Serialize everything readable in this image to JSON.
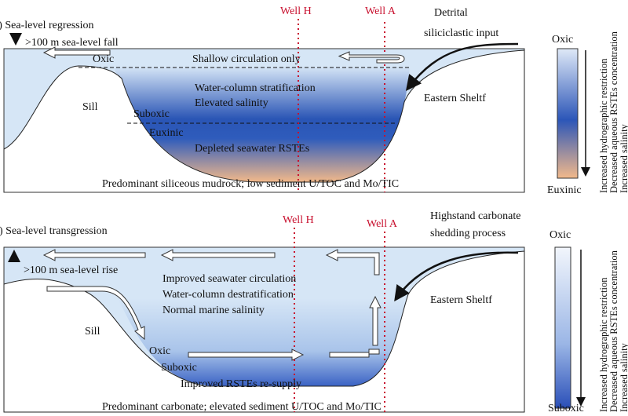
{
  "panels": [
    {
      "title": "a) Sea-level regression",
      "sea_level": ">100 m sea-level fall",
      "wells": [
        "Well H",
        "Well A"
      ],
      "input": [
        "Detrital",
        "siliciclastic input"
      ],
      "circulation": "Shallow circulation only",
      "water_column": [
        "Water-column stratification",
        "Elevated salinity"
      ],
      "redox": [
        "Oxic",
        "Suboxic",
        "Euxinic"
      ],
      "sill": "Sill",
      "shelf": "Eastern Sheltf",
      "rste": "Depleted seawater RSTEs",
      "sediment": "Predominant siliceous mudrock; low sediment U/TOC and Mo/TIC",
      "legend": {
        "top": "Oxic",
        "bottom": "Euxinic",
        "trends": [
          "Increased hydrographic restriction",
          "Decreased aqueous RSTEs concentration",
          "Increased salinity"
        ]
      }
    },
    {
      "title": "b) Sea-level transgression",
      "sea_level": ">100 m sea-level rise",
      "wells": [
        "Well H",
        "Well A"
      ],
      "input": [
        "Highstand carbonate",
        "shedding process"
      ],
      "water_column": [
        "Improved seawater circulation",
        "Water-column destratification",
        "Normal marine salinity"
      ],
      "redox": [
        "Oxic",
        "Suboxic"
      ],
      "sill": "Sill",
      "shelf": "Eastern Sheltf",
      "rste": "Improved RSTEs re-supply",
      "sediment": "Predominant carbonate; elevated sediment U/TOC and Mo/TIC",
      "legend": {
        "top": "Oxic",
        "bottom": "Suboxic",
        "trends": [
          "Increased hydrographic restriction",
          "Decreased aqueous RSTEs concentration",
          "Increased salinity"
        ]
      }
    }
  ]
}
